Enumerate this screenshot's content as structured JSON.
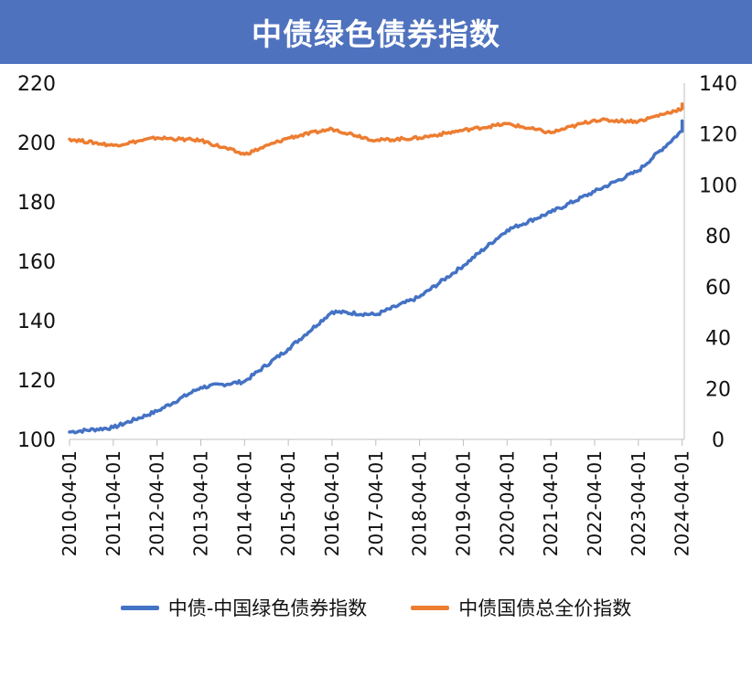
{
  "title": "中债绿色债券指数",
  "chart_data": {
    "type": "line",
    "title": "中债绿色债券指数",
    "x": [
      "2010-04-01",
      "2011-04-01",
      "2012-04-01",
      "2013-04-01",
      "2014-04-01",
      "2015-04-01",
      "2016-04-01",
      "2017-04-01",
      "2018-04-01",
      "2019-04-01",
      "2020-04-01",
      "2021-04-01",
      "2022-04-01",
      "2023-04-01",
      "2024-04-01"
    ],
    "xlabel": "",
    "ylabel": "",
    "ylim": [
      100,
      220
    ],
    "yticks": [
      100,
      120,
      140,
      160,
      180,
      200,
      220
    ],
    "y2lim": [
      0,
      140
    ],
    "y2ticks": [
      0,
      20,
      40,
      60,
      80,
      100,
      120,
      140
    ],
    "grid": false,
    "legend_position": "bottom",
    "series": [
      {
        "name": "中债-中国绿色债券指数",
        "axis": "left",
        "color": "#4472c4",
        "values": [
          102.5,
          104.0,
          109.5,
          117.5,
          119.5,
          130.5,
          143.0,
          142.0,
          148.0,
          158.5,
          170.5,
          176.5,
          183.5,
          190.5,
          204.0
        ],
        "end": [
          2024.25,
          207.0
        ]
      },
      {
        "name": "中债国债总全价指数",
        "axis": "right",
        "color": "#ed7d31",
        "values": [
          118.0,
          115.5,
          118.5,
          117.5,
          112.0,
          118.5,
          122.0,
          117.5,
          118.5,
          121.5,
          124.0,
          120.5,
          125.5,
          125.0,
          130.0
        ],
        "end": [
          2024.25,
          131.5
        ]
      }
    ]
  }
}
